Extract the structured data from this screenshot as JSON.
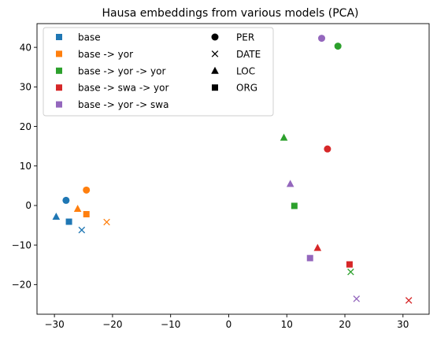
{
  "chart_data": {
    "type": "scatter",
    "title": "Hausa embeddings from various models (PCA)",
    "xlabel": "",
    "ylabel": "",
    "xlim": [
      -33,
      34.5
    ],
    "ylim": [
      -27.5,
      46
    ],
    "xticks": [
      -30,
      -20,
      -10,
      0,
      10,
      20,
      30
    ],
    "yticks": [
      -20,
      -10,
      0,
      10,
      20,
      30,
      40
    ],
    "grid": false,
    "legend": {
      "placement": "top",
      "models": [
        {
          "label": "base",
          "color": "#1f77b4"
        },
        {
          "label": "base -> yor",
          "color": "#ff7f0e"
        },
        {
          "label": "base -> yor -> yor",
          "color": "#2ca02c"
        },
        {
          "label": "base -> swa -> yor",
          "color": "#d62728"
        },
        {
          "label": "base -> yor -> swa",
          "color": "#9467bd"
        }
      ],
      "entities": [
        {
          "label": "PER",
          "marker": "circle"
        },
        {
          "label": "DATE",
          "marker": "x"
        },
        {
          "label": "LOC",
          "marker": "triangle"
        },
        {
          "label": "ORG",
          "marker": "square"
        }
      ]
    },
    "series": [
      {
        "name": "base",
        "color": "#1f77b4",
        "points": [
          {
            "entity": "PER",
            "x": -28.0,
            "y": 1.3
          },
          {
            "entity": "DATE",
            "x": -25.3,
            "y": -6.2
          },
          {
            "entity": "LOC",
            "x": -29.7,
            "y": -2.8
          },
          {
            "entity": "ORG",
            "x": -27.5,
            "y": -4.1
          }
        ]
      },
      {
        "name": "base -> yor",
        "color": "#ff7f0e",
        "points": [
          {
            "entity": "PER",
            "x": -24.5,
            "y": 3.9
          },
          {
            "entity": "DATE",
            "x": -21.0,
            "y": -4.2
          },
          {
            "entity": "LOC",
            "x": -26.0,
            "y": -0.8
          },
          {
            "entity": "ORG",
            "x": -24.5,
            "y": -2.2
          }
        ]
      },
      {
        "name": "base -> yor -> yor",
        "color": "#2ca02c",
        "points": [
          {
            "entity": "PER",
            "x": 18.8,
            "y": 40.3
          },
          {
            "entity": "DATE",
            "x": 21.0,
            "y": -16.8
          },
          {
            "entity": "LOC",
            "x": 9.5,
            "y": 17.2
          },
          {
            "entity": "ORG",
            "x": 11.3,
            "y": -0.1
          }
        ]
      },
      {
        "name": "base -> swa -> yor",
        "color": "#d62728",
        "points": [
          {
            "entity": "PER",
            "x": 17.0,
            "y": 14.3
          },
          {
            "entity": "DATE",
            "x": 31.0,
            "y": -24.0
          },
          {
            "entity": "LOC",
            "x": 15.3,
            "y": -10.7
          },
          {
            "entity": "ORG",
            "x": 20.8,
            "y": -14.9
          }
        ]
      },
      {
        "name": "base -> yor -> swa",
        "color": "#9467bd",
        "points": [
          {
            "entity": "PER",
            "x": 16.0,
            "y": 42.3
          },
          {
            "entity": "DATE",
            "x": 22.0,
            "y": -23.6
          },
          {
            "entity": "LOC",
            "x": 10.6,
            "y": 5.5
          },
          {
            "entity": "ORG",
            "x": 14.0,
            "y": -13.3
          }
        ]
      }
    ]
  }
}
